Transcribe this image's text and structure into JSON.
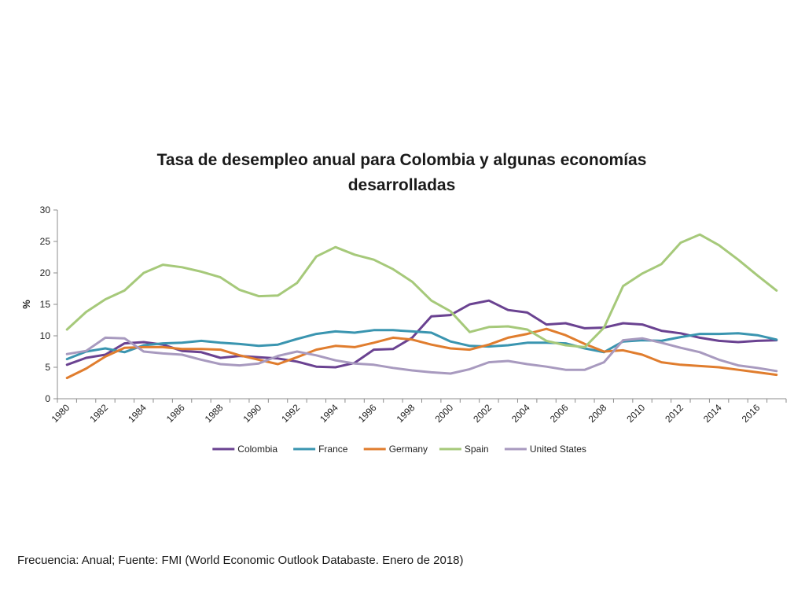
{
  "footnote": "Frecuencia: Anual; Fuente: FMI (World Economic Outlook Databaste. Enero de 2018)",
  "chart_data": {
    "type": "line",
    "title_lines": [
      "Tasa de desempleo anual para Colombia y algunas economías",
      "desarrolladas"
    ],
    "xlabel": "",
    "ylabel": "%",
    "ylim": [
      0,
      30
    ],
    "yticks": [
      0,
      5,
      10,
      15,
      20,
      25,
      30
    ],
    "x": [
      1980,
      1981,
      1982,
      1983,
      1984,
      1985,
      1986,
      1987,
      1988,
      1989,
      1990,
      1991,
      1992,
      1993,
      1994,
      1995,
      1996,
      1997,
      1998,
      1999,
      2000,
      2001,
      2002,
      2003,
      2004,
      2005,
      2006,
      2007,
      2008,
      2009,
      2010,
      2011,
      2012,
      2013,
      2014,
      2015,
      2016,
      2017
    ],
    "xticks": [
      "1980",
      "1982",
      "1984",
      "1986",
      "1988",
      "1990",
      "1992",
      "1994",
      "1996",
      "1998",
      "2000",
      "2002",
      "2004",
      "2006",
      "2008",
      "2010",
      "2012",
      "2014",
      "2016"
    ],
    "grid": false,
    "legend_position": "bottom",
    "series": [
      {
        "name": "Colombia",
        "color": "#6a4291",
        "values": [
          5.4,
          6.5,
          7.0,
          8.8,
          9.0,
          8.6,
          7.6,
          7.4,
          6.5,
          6.8,
          6.6,
          6.4,
          5.9,
          5.1,
          5.0,
          5.7,
          7.8,
          7.9,
          9.7,
          13.1,
          13.3,
          15.0,
          15.6,
          14.1,
          13.7,
          11.8,
          12.0,
          11.2,
          11.3,
          12.0,
          11.8,
          10.8,
          10.4,
          9.7,
          9.2,
          9.0,
          9.2,
          9.3
        ]
      },
      {
        "name": "France",
        "color": "#3a95b0",
        "values": [
          6.3,
          7.5,
          8.0,
          7.4,
          8.5,
          8.8,
          8.9,
          9.2,
          8.9,
          8.7,
          8.4,
          8.6,
          9.5,
          10.3,
          10.7,
          10.5,
          10.9,
          10.9,
          10.7,
          10.5,
          9.1,
          8.4,
          8.3,
          8.5,
          8.9,
          8.9,
          8.8,
          8.0,
          7.4,
          9.1,
          9.3,
          9.2,
          9.8,
          10.3,
          10.3,
          10.4,
          10.1,
          9.4
        ]
      },
      {
        "name": "Germany",
        "color": "#e07d2e",
        "values": [
          3.3,
          4.8,
          6.7,
          8.1,
          8.2,
          8.2,
          7.9,
          7.9,
          7.8,
          6.9,
          6.2,
          5.5,
          6.6,
          7.8,
          8.4,
          8.2,
          8.9,
          9.7,
          9.4,
          8.6,
          8.0,
          7.8,
          8.6,
          9.7,
          10.3,
          11.1,
          10.1,
          8.7,
          7.5,
          7.7,
          7.0,
          5.8,
          5.4,
          5.2,
          5.0,
          4.6,
          4.2,
          3.8
        ]
      },
      {
        "name": "Spain",
        "color": "#a6c97a",
        "values": [
          11.0,
          13.8,
          15.8,
          17.2,
          20.0,
          21.3,
          20.9,
          20.2,
          19.3,
          17.3,
          16.3,
          16.4,
          18.4,
          22.6,
          24.1,
          22.9,
          22.1,
          20.6,
          18.6,
          15.6,
          13.9,
          10.6,
          11.4,
          11.5,
          11.0,
          9.2,
          8.5,
          8.2,
          11.3,
          17.9,
          19.9,
          21.4,
          24.8,
          26.1,
          24.4,
          22.1,
          19.6,
          17.2
        ]
      },
      {
        "name": "United States",
        "color": "#a89abf",
        "values": [
          7.1,
          7.6,
          9.7,
          9.6,
          7.5,
          7.2,
          7.0,
          6.2,
          5.5,
          5.3,
          5.6,
          6.8,
          7.5,
          6.9,
          6.1,
          5.6,
          5.4,
          4.9,
          4.5,
          4.2,
          4.0,
          4.7,
          5.8,
          6.0,
          5.5,
          5.1,
          4.6,
          4.6,
          5.8,
          9.3,
          9.6,
          8.9,
          8.1,
          7.4,
          6.2,
          5.3,
          4.9,
          4.4
        ]
      }
    ]
  }
}
